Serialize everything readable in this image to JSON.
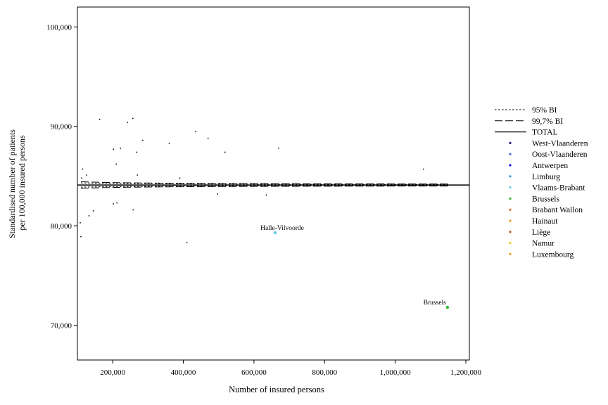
{
  "chart_data": {
    "type": "scatter",
    "title": "",
    "xlabel": "Number of insured persons",
    "ylabel_lines": [
      "Standardised number of patients",
      "per 100,000 insured persons"
    ],
    "xlim": [
      100000,
      1210000
    ],
    "ylim": [
      66500,
      102000
    ],
    "x_ticks": [
      200000,
      400000,
      600000,
      800000,
      1000000,
      1200000
    ],
    "x_tick_labels": [
      "200,000",
      "400,000",
      "600,000",
      "800,000",
      "1,000,000",
      "1,200,000"
    ],
    "y_ticks": [
      70000,
      80000,
      90000,
      100000
    ],
    "y_tick_labels": [
      "70,000",
      "80,000",
      "90,000",
      "100,000"
    ],
    "grid": false,
    "legend_position": "right",
    "total": 84100,
    "limit_x_range": [
      110000,
      1150000
    ],
    "limit_lines": [
      {
        "name": "95% BI",
        "style": "dotted",
        "z": 1.96
      },
      {
        "name": "99,7% BI",
        "style": "dashed",
        "z": 3.0
      }
    ],
    "total_line_name": "TOTAL",
    "series": [
      {
        "name": "West-Vlaanderen",
        "color": "#1a1a8c"
      },
      {
        "name": "Oost-Vlaanderen",
        "color": "#3a6fd8"
      },
      {
        "name": "Antwerpen",
        "color": "#1010e0"
      },
      {
        "name": "Limburg",
        "color": "#3399dd"
      },
      {
        "name": "Vlaams-Brabant",
        "color": "#66c8f0"
      },
      {
        "name": "Brussels",
        "color": "#2fb82f"
      },
      {
        "name": "Brabant Wallon",
        "color": "#e06a3a"
      },
      {
        "name": "Hainaut",
        "color": "#f09a2a"
      },
      {
        "name": "Liège",
        "color": "#c8503a"
      },
      {
        "name": "Namur",
        "color": "#f0d020"
      },
      {
        "name": "Luxembourg",
        "color": "#f0a020"
      }
    ],
    "points": [
      {
        "x": 115000,
        "y": 85700
      },
      {
        "x": 112000,
        "y": 84800
      },
      {
        "x": 126000,
        "y": 85100
      },
      {
        "x": 163000,
        "y": 90700
      },
      {
        "x": 202000,
        "y": 87700
      },
      {
        "x": 222000,
        "y": 87800
      },
      {
        "x": 210000,
        "y": 86200
      },
      {
        "x": 242000,
        "y": 90400
      },
      {
        "x": 257000,
        "y": 90800
      },
      {
        "x": 268000,
        "y": 87400
      },
      {
        "x": 285000,
        "y": 88600
      },
      {
        "x": 270000,
        "y": 85100
      },
      {
        "x": 360000,
        "y": 88300
      },
      {
        "x": 390000,
        "y": 84800
      },
      {
        "x": 435000,
        "y": 89500
      },
      {
        "x": 470000,
        "y": 88800
      },
      {
        "x": 518000,
        "y": 87400
      },
      {
        "x": 670000,
        "y": 87800
      },
      {
        "x": 1080000,
        "y": 85700
      },
      {
        "x": 497000,
        "y": 83200
      },
      {
        "x": 635000,
        "y": 83100
      },
      {
        "x": 108000,
        "y": 80300
      },
      {
        "x": 110000,
        "y": 78900
      },
      {
        "x": 133000,
        "y": 81000
      },
      {
        "x": 145000,
        "y": 81500
      },
      {
        "x": 202000,
        "y": 82200
      },
      {
        "x": 212000,
        "y": 82300
      },
      {
        "x": 258000,
        "y": 81600
      },
      {
        "x": 410000,
        "y": 78300
      },
      {
        "x": 660000,
        "y": 79300,
        "series": "Vlaams-Brabant",
        "label": "Halle-Vilvoorde"
      },
      {
        "x": 1148000,
        "y": 71800,
        "series": "Brussels",
        "label": "Brussels"
      }
    ]
  }
}
